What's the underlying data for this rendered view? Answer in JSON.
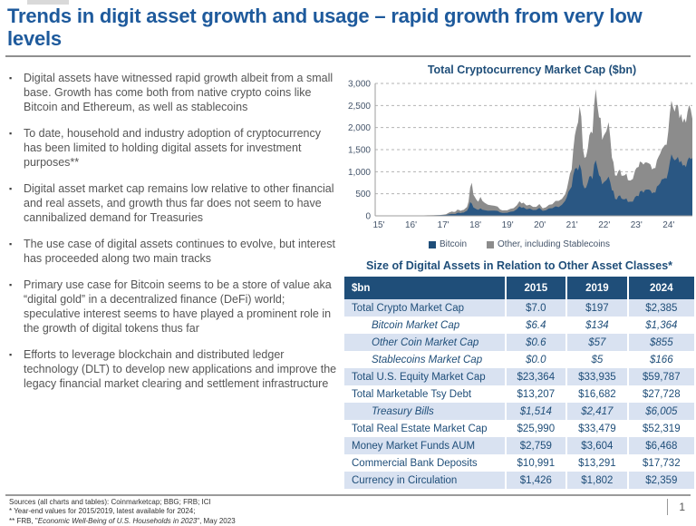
{
  "title": "Trends in digit asset growth and usage – rapid growth from very low levels",
  "bullets": [
    "Digital assets have witnessed rapid growth albeit from a small base. Growth has come both from native crypto coins like Bitcoin and Ethereum, as well as stablecoins",
    "To date, household and industry adoption of cryptocurrency has been limited to holding digital assets for investment purposes**",
    "Digital asset market cap remains low relative to other financial and real assets, and growth thus far does not seem to have cannibalized demand for Treasuries",
    "The use case of digital assets continues to evolve, but interest has proceeded along two main tracks",
    "Primary use case for Bitcoin seems to be a store of value aka “digital gold” in a decentralized finance (DeFi) world; speculative interest seems to have played a prominent role in the growth of digital tokens thus far",
    "Efforts to leverage blockchain and distributed ledger technology (DLT) to develop new applications and improve the legacy financial market clearing and settlement infrastructure"
  ],
  "chart": {
    "title": "Total Cryptocurrency Market Cap ($bn)",
    "legend": [
      {
        "label": "Bitcoin",
        "color": "#1F4E79"
      },
      {
        "label": "Other, including Stablecoins",
        "color": "#8C8C8C"
      }
    ]
  },
  "chart_data": {
    "type": "area",
    "stacked": true,
    "title": "Total Cryptocurrency Market Cap ($bn)",
    "xlabel": "",
    "ylabel": "$bn",
    "x_range": [
      2015,
      2024.85
    ],
    "ylim": [
      0,
      3000
    ],
    "grid": "dashed-horizontal",
    "legend_position": "bottom",
    "y_ticks": [
      "0",
      "500",
      "1,000",
      "1,500",
      "2,000",
      "2,500",
      "3,000"
    ],
    "x_ticks": [
      "15'",
      "16'",
      "17'",
      "18'",
      "19'",
      "20'",
      "21'",
      "22'",
      "23'",
      "24'"
    ],
    "point_format": [
      "year",
      "bitcoin_bn",
      "other_including_stablecoins_bn"
    ],
    "points": [
      [
        2015.0,
        3.5,
        0.8
      ],
      [
        2015.2,
        3.3,
        0.7
      ],
      [
        2015.4,
        3.4,
        0.8
      ],
      [
        2015.6,
        3.6,
        0.9
      ],
      [
        2015.8,
        4.5,
        1.0
      ],
      [
        2016.0,
        6.3,
        1.2
      ],
      [
        2016.2,
        6.5,
        1.6
      ],
      [
        2016.4,
        7.0,
        2.2
      ],
      [
        2016.6,
        10.2,
        2.4
      ],
      [
        2016.8,
        11.0,
        2.6
      ],
      [
        2017.0,
        15.5,
        3.0
      ],
      [
        2017.1,
        19,
        6
      ],
      [
        2017.2,
        20,
        17
      ],
      [
        2017.3,
        38,
        37
      ],
      [
        2017.38,
        44,
        52
      ],
      [
        2017.45,
        41,
        48
      ],
      [
        2017.5,
        43,
        55
      ],
      [
        2017.55,
        68,
        72
      ],
      [
        2017.6,
        72,
        62
      ],
      [
        2017.65,
        60,
        52
      ],
      [
        2017.7,
        71,
        58
      ],
      [
        2017.75,
        73,
        63
      ],
      [
        2017.8,
        98,
        72
      ],
      [
        2017.85,
        115,
        85
      ],
      [
        2017.9,
        180,
        140
      ],
      [
        2017.95,
        310,
        330
      ],
      [
        2018.0,
        280,
        470
      ],
      [
        2018.05,
        190,
        290
      ],
      [
        2018.1,
        170,
        250
      ],
      [
        2018.15,
        150,
        210
      ],
      [
        2018.2,
        135,
        185
      ],
      [
        2018.27,
        170,
        260
      ],
      [
        2018.33,
        140,
        200
      ],
      [
        2018.4,
        130,
        165
      ],
      [
        2018.5,
        115,
        135
      ],
      [
        2018.6,
        118,
        120
      ],
      [
        2018.7,
        120,
        108
      ],
      [
        2018.8,
        112,
        100
      ],
      [
        2018.88,
        75,
        68
      ],
      [
        2018.95,
        65,
        58
      ],
      [
        2019.0,
        66,
        59
      ],
      [
        2019.1,
        70,
        56
      ],
      [
        2019.2,
        92,
        68
      ],
      [
        2019.3,
        102,
        73
      ],
      [
        2019.4,
        150,
        88
      ],
      [
        2019.48,
        215,
        115
      ],
      [
        2019.55,
        180,
        100
      ],
      [
        2019.6,
        195,
        105
      ],
      [
        2019.7,
        150,
        85
      ],
      [
        2019.8,
        165,
        88
      ],
      [
        2019.9,
        132,
        72
      ],
      [
        2020.0,
        134,
        70
      ],
      [
        2020.1,
        180,
        88
      ],
      [
        2020.2,
        112,
        58
      ],
      [
        2020.3,
        126,
        68
      ],
      [
        2020.4,
        170,
        80
      ],
      [
        2020.5,
        172,
        92
      ],
      [
        2020.6,
        215,
        125
      ],
      [
        2020.7,
        198,
        142
      ],
      [
        2020.8,
        252,
        132
      ],
      [
        2020.9,
        340,
        150
      ],
      [
        2020.95,
        420,
        180
      ],
      [
        2021.0,
        545,
        230
      ],
      [
        2021.05,
        600,
        360
      ],
      [
        2021.1,
        660,
        390
      ],
      [
        2021.15,
        920,
        560
      ],
      [
        2021.2,
        1060,
        760
      ],
      [
        2021.25,
        1090,
        910
      ],
      [
        2021.3,
        1030,
        1090
      ],
      [
        2021.35,
        1170,
        1310
      ],
      [
        2021.4,
        1040,
        1210
      ],
      [
        2021.45,
        710,
        810
      ],
      [
        2021.5,
        620,
        690
      ],
      [
        2021.55,
        640,
        700
      ],
      [
        2021.6,
        745,
        765
      ],
      [
        2021.65,
        890,
        930
      ],
      [
        2021.7,
        905,
        1005
      ],
      [
        2021.75,
        830,
        1040
      ],
      [
        2021.8,
        1160,
        1360
      ],
      [
        2021.85,
        1260,
        1610
      ],
      [
        2021.9,
        1090,
        1410
      ],
      [
        2021.95,
        920,
        1310
      ],
      [
        2022.0,
        880,
        1340
      ],
      [
        2022.05,
        710,
        1010
      ],
      [
        2022.1,
        760,
        1060
      ],
      [
        2022.18,
        810,
        1110
      ],
      [
        2022.25,
        890,
        1230
      ],
      [
        2022.3,
        760,
        1010
      ],
      [
        2022.35,
        580,
        740
      ],
      [
        2022.4,
        565,
        650
      ],
      [
        2022.45,
        385,
        530
      ],
      [
        2022.5,
        370,
        540
      ],
      [
        2022.55,
        445,
        565
      ],
      [
        2022.6,
        465,
        585
      ],
      [
        2022.65,
        390,
        520
      ],
      [
        2022.7,
        375,
        535
      ],
      [
        2022.75,
        375,
        545
      ],
      [
        2022.8,
        395,
        565
      ],
      [
        2022.85,
        315,
        495
      ],
      [
        2022.92,
        320,
        480
      ],
      [
        2023.0,
        320,
        515
      ],
      [
        2023.07,
        425,
        605
      ],
      [
        2023.12,
        455,
        635
      ],
      [
        2023.18,
        445,
        665
      ],
      [
        2023.22,
        550,
        680
      ],
      [
        2023.28,
        570,
        640
      ],
      [
        2023.33,
        525,
        635
      ],
      [
        2023.38,
        585,
        625
      ],
      [
        2023.43,
        595,
        615
      ],
      [
        2023.5,
        595,
        595
      ],
      [
        2023.55,
        575,
        585
      ],
      [
        2023.6,
        510,
        540
      ],
      [
        2023.65,
        535,
        545
      ],
      [
        2023.7,
        525,
        555
      ],
      [
        2023.75,
        665,
        595
      ],
      [
        2023.8,
        695,
        645
      ],
      [
        2023.85,
        740,
        670
      ],
      [
        2023.9,
        825,
        685
      ],
      [
        2023.95,
        835,
        725
      ],
      [
        2024.0,
        855,
        755
      ],
      [
        2024.05,
        845,
        765
      ],
      [
        2024.1,
        1005,
        905
      ],
      [
        2024.15,
        1210,
        1110
      ],
      [
        2024.2,
        1395,
        1215
      ],
      [
        2024.25,
        1305,
        1155
      ],
      [
        2024.3,
        1255,
        1105
      ],
      [
        2024.35,
        1285,
        1225
      ],
      [
        2024.4,
        1335,
        1175
      ],
      [
        2024.45,
        1205,
        1005
      ],
      [
        2024.5,
        1245,
        1065
      ],
      [
        2024.55,
        1135,
        975
      ],
      [
        2024.6,
        1155,
        1055
      ],
      [
        2024.65,
        1105,
        1005
      ],
      [
        2024.7,
        1255,
        1105
      ],
      [
        2024.75,
        1325,
        1185
      ],
      [
        2024.8,
        1285,
        1125
      ],
      [
        2024.85,
        1310,
        890
      ]
    ]
  },
  "table": {
    "title": "Size of Digital Assets in Relation to Other Asset Classes*",
    "columns": [
      "$bn",
      "2015",
      "2019",
      "2024"
    ],
    "rows": [
      {
        "label": "Total Crypto Market Cap",
        "values": [
          "$7.0",
          "$197",
          "$2,385"
        ],
        "sub": false
      },
      {
        "label": "Bitcoin Market Cap",
        "values": [
          "$6.4",
          "$134",
          "$1,364"
        ],
        "sub": true
      },
      {
        "label": "Other Coin Market Cap",
        "values": [
          "$0.6",
          "$57",
          "$855"
        ],
        "sub": true
      },
      {
        "label": "Stablecoins Market Cap",
        "values": [
          "$0.0",
          "$5",
          "$166"
        ],
        "sub": true
      },
      {
        "label": "Total U.S. Equity Market Cap",
        "values": [
          "$23,364",
          "$33,935",
          "$59,787"
        ],
        "sub": false
      },
      {
        "label": "Total Marketable Tsy Debt",
        "values": [
          "$13,207",
          "$16,682",
          "$27,728"
        ],
        "sub": false
      },
      {
        "label": "Treasury Bills",
        "values": [
          "$1,514",
          "$2,417",
          "$6,005"
        ],
        "sub": true
      },
      {
        "label": "Total Real Estate Market Cap",
        "values": [
          "$25,990",
          "$33,479",
          "$52,319"
        ],
        "sub": false
      },
      {
        "label": "Money Market Funds AUM",
        "values": [
          "$2,759",
          "$3,604",
          "$6,468"
        ],
        "sub": false
      },
      {
        "label": "Commercial Bank Deposits",
        "values": [
          "$10,991",
          "$13,291",
          "$17,732"
        ],
        "sub": false
      },
      {
        "label": "Currency in Circulation",
        "values": [
          "$1,426",
          "$1,802",
          "$2,359"
        ],
        "sub": false
      }
    ]
  },
  "footer": {
    "line1": "Sources (all charts and tables): Coinmarketcap; BBG; FRB; ICI",
    "line2": "* Year-end values for 2015/2019, latest available for 2024;",
    "line3_prefix": "** FRB, \"",
    "line3_italic": "Economic Well-Being of U.S. Households in 2023",
    "line3_suffix": "\", May 2023",
    "page_number": "1"
  },
  "colors": {
    "title_blue": "#1E5A9C",
    "navy": "#1F4E79",
    "chart_bitcoin": "#2A5783",
    "chart_other": "#8C8C8C",
    "row_light_blue": "#D9E2F1",
    "bullet_gray": "#555555"
  }
}
